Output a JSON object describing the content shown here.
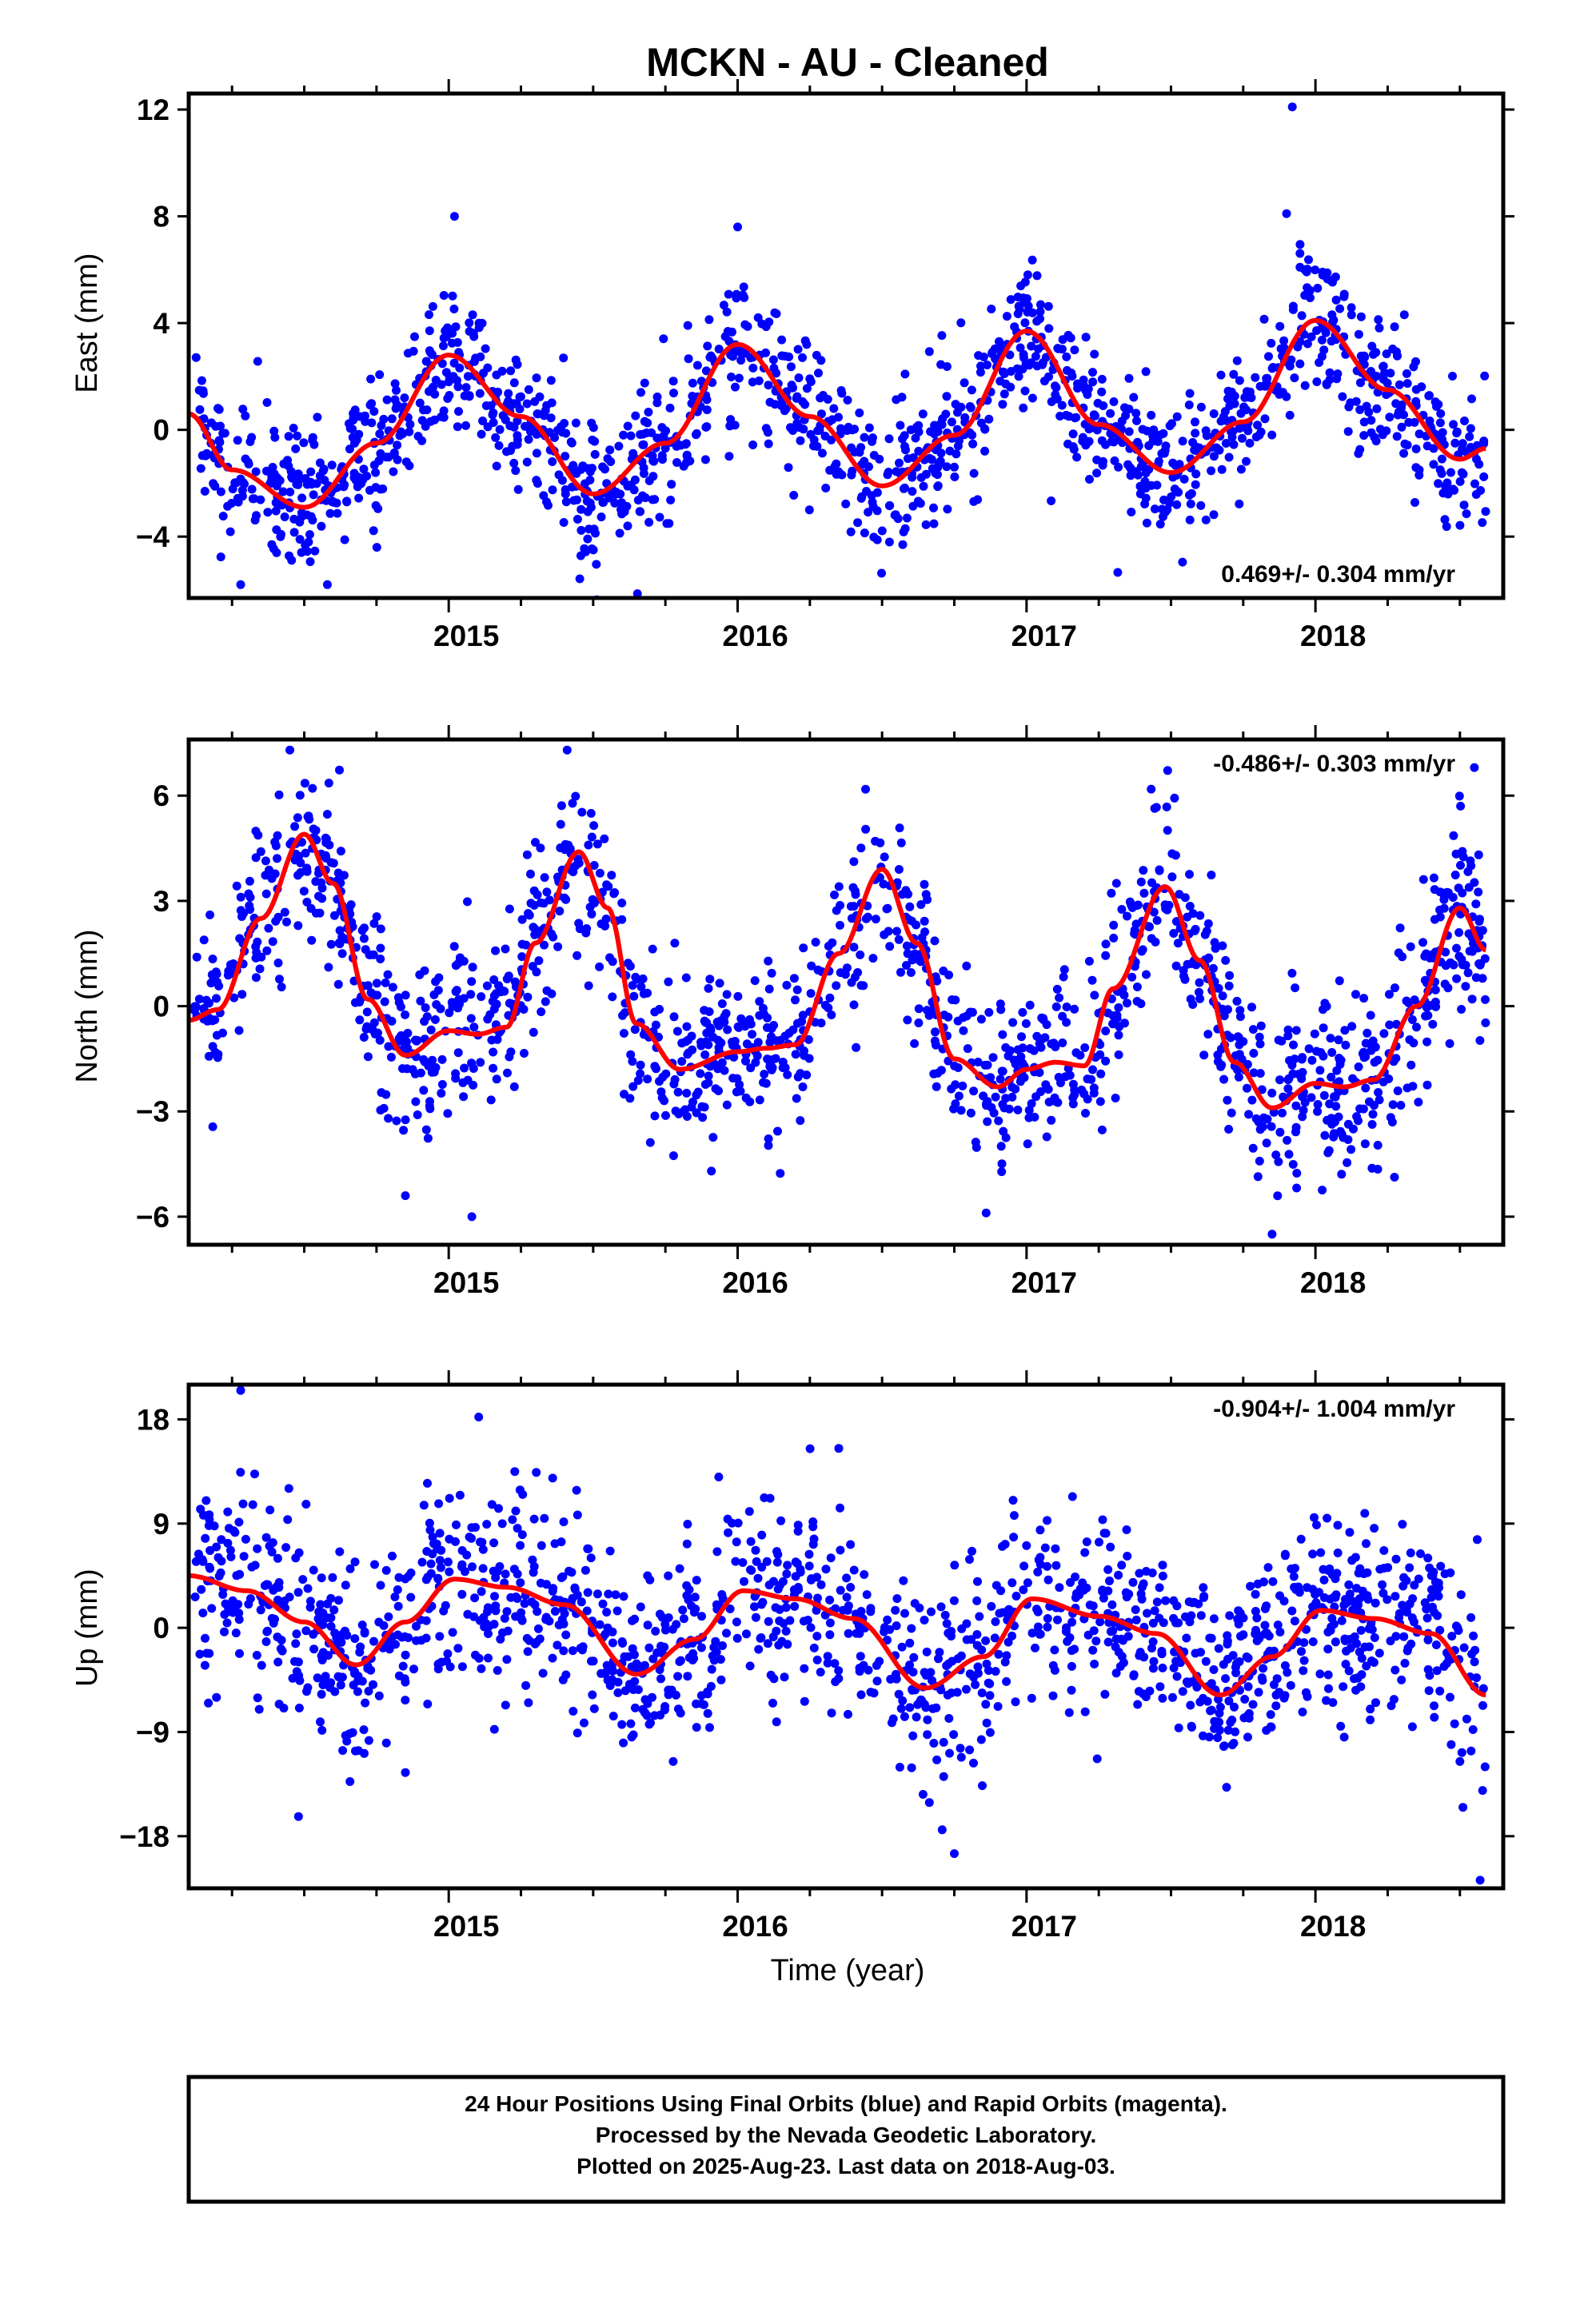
{
  "title": "MCKN  - AU - Cleaned",
  "xlabel": "Time (year)",
  "footer": {
    "line1": "24 Hour Positions Using Final Orbits (blue) and Rapid Orbits (magenta).",
    "line2": "Processed by the Nevada Geodetic Laboratory.",
    "line3": "Plotted on 2025-Aug-23. Last data on 2018-Aug-03."
  },
  "colors": {
    "points": "#0000ff",
    "fit": "#ff0000",
    "axes": "#000000"
  },
  "chart_data": [
    {
      "type": "scatter",
      "ylabel": "East (mm)",
      "xlim": [
        2014.1,
        2018.65
      ],
      "ylim": [
        -6.3,
        12.6
      ],
      "yticks": [
        -4,
        0,
        4,
        8,
        12
      ],
      "xticks": [
        2015,
        2016,
        2017,
        2018
      ],
      "rate_label": "0.469+/- 0.304 mm/yr",
      "rate_position": "bottom-right",
      "fit_x": [
        2014.1,
        2014.25,
        2014.5,
        2014.75,
        2015.0,
        2015.25,
        2015.5,
        2015.75,
        2016.0,
        2016.25,
        2016.5,
        2016.75,
        2017.0,
        2017.25,
        2017.5,
        2017.75,
        2018.0,
        2018.25,
        2018.5,
        2018.59
      ],
      "fit_y": [
        0.6,
        -1.5,
        -2.9,
        -0.5,
        2.8,
        0.5,
        -2.4,
        -0.5,
        3.2,
        0.5,
        -2.1,
        -0.2,
        3.7,
        0.2,
        -1.6,
        0.3,
        4.1,
        1.5,
        -1.1,
        -0.7
      ],
      "mean_x": [
        2014.1,
        2014.25,
        2014.5,
        2014.75,
        2015.0,
        2015.25,
        2015.5,
        2015.75,
        2016.0,
        2016.25,
        2016.5,
        2016.75,
        2017.0,
        2017.25,
        2017.5,
        2017.75,
        2018.0,
        2018.25,
        2018.5,
        2018.59
      ],
      "mean_y": [
        0.6,
        -1.5,
        -2.9,
        -0.5,
        2.8,
        0.5,
        -2.4,
        -0.5,
        3.2,
        0.5,
        -2.1,
        -0.2,
        3.7,
        0.2,
        -1.6,
        0.3,
        4.1,
        1.5,
        -1.1,
        -0.7
      ],
      "noise": 1.3,
      "n_points": 1500,
      "outliers": [
        [
          2017.92,
          12.1
        ],
        [
          2015.02,
          8.0
        ],
        [
          2016.0,
          7.6
        ],
        [
          2017.9,
          8.1
        ],
        [
          2014.58,
          -5.8
        ],
        [
          2014.28,
          -5.8
        ]
      ]
    },
    {
      "type": "scatter",
      "ylabel": "North (mm)",
      "xlim": [
        2014.1,
        2018.65
      ],
      "ylim": [
        -6.8,
        7.6
      ],
      "yticks": [
        -6,
        -3,
        0,
        3,
        6
      ],
      "xticks": [
        2015,
        2016,
        2017,
        2018
      ],
      "rate_label": "-0.486+/- 0.303 mm/yr",
      "rate_position": "top-right",
      "fit_x": [
        2014.1,
        2014.2,
        2014.35,
        2014.5,
        2014.6,
        2014.72,
        2014.85,
        2015.0,
        2015.1,
        2015.2,
        2015.3,
        2015.45,
        2015.55,
        2015.65,
        2015.8,
        2016.0,
        2016.1,
        2016.2,
        2016.35,
        2016.5,
        2016.62,
        2016.75,
        2016.9,
        2017.0,
        2017.1,
        2017.2,
        2017.3,
        2017.48,
        2017.6,
        2017.72,
        2017.85,
        2018.0,
        2018.1,
        2018.2,
        2018.35,
        2018.5,
        2018.59
      ],
      "fit_y": [
        -0.4,
        -0.1,
        2.5,
        4.9,
        3.5,
        0.2,
        -1.4,
        -0.7,
        -0.8,
        -0.6,
        1.8,
        4.4,
        2.8,
        -0.5,
        -1.8,
        -1.3,
        -1.2,
        -1.1,
        1.5,
        3.9,
        1.8,
        -1.5,
        -2.3,
        -1.8,
        -1.6,
        -1.7,
        0.5,
        3.4,
        1.3,
        -1.6,
        -2.9,
        -2.2,
        -2.3,
        -2.1,
        0.0,
        2.8,
        1.6
      ],
      "mean_x": [
        2014.1,
        2014.2,
        2014.35,
        2014.5,
        2014.6,
        2014.72,
        2014.85,
        2015.0,
        2015.1,
        2015.2,
        2015.3,
        2015.45,
        2015.55,
        2015.65,
        2015.8,
        2016.0,
        2016.1,
        2016.2,
        2016.35,
        2016.5,
        2016.62,
        2016.75,
        2016.9,
        2017.0,
        2017.1,
        2017.2,
        2017.3,
        2017.48,
        2017.6,
        2017.72,
        2017.85,
        2018.0,
        2018.1,
        2018.2,
        2018.35,
        2018.5,
        2018.59
      ],
      "mean_y": [
        -0.4,
        -0.1,
        2.5,
        4.9,
        3.5,
        0.2,
        -1.4,
        -0.7,
        -0.8,
        -0.6,
        1.8,
        4.4,
        2.8,
        -0.5,
        -1.8,
        -1.3,
        -1.2,
        -1.1,
        1.5,
        3.9,
        1.8,
        -1.5,
        -2.3,
        -1.8,
        -1.6,
        -1.7,
        0.5,
        3.4,
        1.3,
        -1.6,
        -2.9,
        -2.2,
        -2.3,
        -2.1,
        0.0,
        2.8,
        1.6
      ],
      "noise": 1.25,
      "n_points": 1500,
      "outliers": [
        [
          2015.08,
          -6.0
        ],
        [
          2017.85,
          -6.5
        ],
        [
          2014.85,
          -5.4
        ],
        [
          2018.55,
          6.8
        ],
        [
          2014.45,
          7.3
        ],
        [
          2015.41,
          7.3
        ]
      ]
    },
    {
      "type": "scatter",
      "ylabel": "Up (mm)",
      "xlim": [
        2014.1,
        2018.65
      ],
      "ylim": [
        -22.5,
        21.0
      ],
      "yticks": [
        -18,
        -9,
        0,
        9,
        18
      ],
      "xticks": [
        2015,
        2016,
        2017,
        2018
      ],
      "rate_label": "-0.904+/- 1.004 mm/yr",
      "rate_position": "top-right",
      "fit_x": [
        2014.1,
        2014.3,
        2014.5,
        2014.68,
        2014.85,
        2015.02,
        2015.2,
        2015.4,
        2015.65,
        2015.85,
        2016.02,
        2016.2,
        2016.4,
        2016.65,
        2016.85,
        2017.02,
        2017.25,
        2017.45,
        2017.67,
        2017.85,
        2018.02,
        2018.2,
        2018.4,
        2018.59
      ],
      "fit_y": [
        4.5,
        3.2,
        0.5,
        -3.2,
        0.5,
        4.2,
        3.5,
        2.0,
        -4.0,
        -1.0,
        3.2,
        2.5,
        0.8,
        -5.2,
        -2.5,
        2.5,
        1.0,
        -0.5,
        -5.8,
        -2.5,
        1.5,
        0.8,
        -0.5,
        -5.8
      ],
      "mean_x": [
        2014.1,
        2014.3,
        2014.5,
        2014.68,
        2014.85,
        2015.02,
        2015.2,
        2015.4,
        2015.65,
        2015.85,
        2016.02,
        2016.2,
        2016.4,
        2016.65,
        2016.85,
        2017.02,
        2017.25,
        2017.45,
        2017.67,
        2017.85,
        2018.02,
        2018.2,
        2018.4,
        2018.59
      ],
      "mean_y": [
        4.5,
        3.2,
        0.5,
        -3.2,
        0.5,
        4.2,
        3.5,
        2.0,
        -4.0,
        -1.0,
        3.2,
        2.5,
        0.8,
        -5.2,
        -2.5,
        2.5,
        1.0,
        -0.5,
        -5.8,
        -2.5,
        1.5,
        0.8,
        -0.5,
        -5.8
      ],
      "noise": 4.2,
      "n_points": 1500,
      "outliers": [
        [
          2014.28,
          20.5
        ],
        [
          2016.35,
          15.5
        ],
        [
          2014.48,
          -16.3
        ],
        [
          2016.75,
          -19.5
        ],
        [
          2018.57,
          -21.8
        ],
        [
          2014.85,
          -12.5
        ]
      ]
    }
  ]
}
